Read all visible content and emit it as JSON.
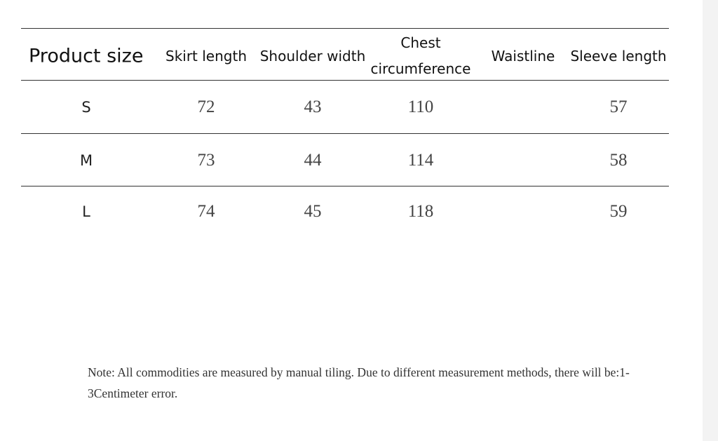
{
  "table": {
    "header": [
      "Product size",
      "Skirt length",
      "Shoulder width",
      "Chest circumference",
      "Waistline",
      "Sleeve length"
    ],
    "rows": [
      [
        "S",
        72,
        43,
        110,
        null,
        57
      ],
      [
        "M",
        73,
        44,
        114,
        null,
        58
      ],
      [
        "L",
        74,
        45,
        118,
        null,
        59
      ]
    ]
  },
  "note": "Note: All commodities are measured by manual tiling. Due to different measurement methods, there will be:1-3Centimeter error."
}
